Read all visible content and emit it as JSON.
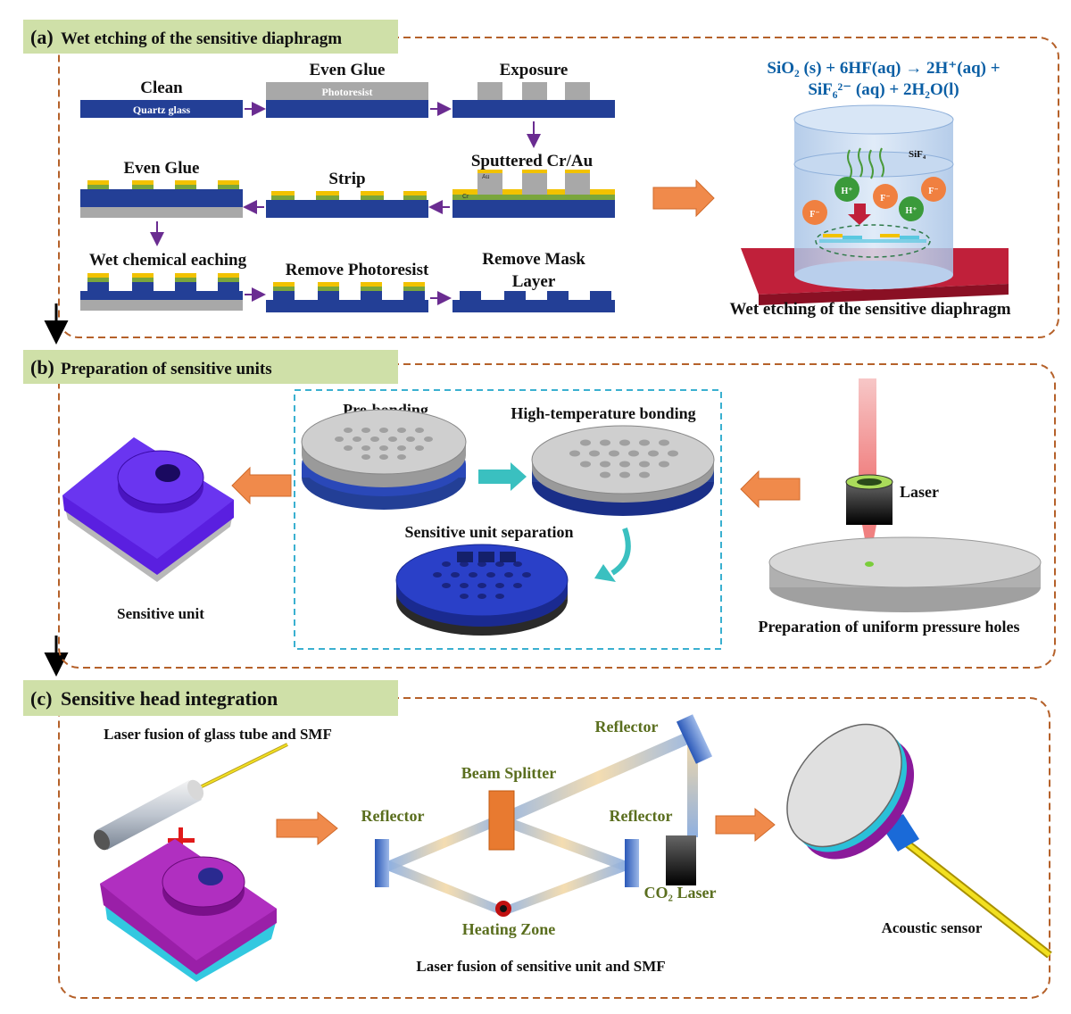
{
  "colors": {
    "header_bg": "#cfe0a8",
    "dash_border": "#b5612a",
    "quartz_blue": "#233f96",
    "photoresist_gray": "#a8a8a8",
    "gold": "#f2c200",
    "green_layer": "#7aa63c",
    "arrow_purple": "#6a2c91",
    "arrow_orange": "#f08a4b",
    "unit_purple": "#5a1fe0",
    "unit_magenta": "#9a1fa8",
    "cyan_layer": "#33c8e0",
    "laser_red": "#f0a0a0",
    "formula_blue": "#0b5fa5"
  },
  "section_a": {
    "label": "(a)",
    "title": "Wet etching of the sensitive diaphragm",
    "steps": {
      "clean": "Clean",
      "even_glue_1": "Even Glue",
      "exposure": "Exposure",
      "sputtered": "Sputtered Cr/Au",
      "strip": "Strip",
      "even_glue_2": "Even Glue",
      "wet_chemical": "Wet chemical eaching",
      "remove_photoresist": "Remove Photoresist",
      "remove_mask_line1": "Remove Mask",
      "remove_mask_line2": "Layer"
    },
    "layer_labels": {
      "quartz": "Quartz glass",
      "photoresist": "Photoresist",
      "au": "Au",
      "cr": "Cr"
    },
    "formula_line1": "SiO₂ (s) + 6HF(aq) → 2H⁺(aq) +",
    "formula_line2": "SiF₆²⁻ (aq) + 2H₂O(l)",
    "beaker_labels": {
      "sif4": "SiF₄",
      "h_plus": "H⁺",
      "f_minus": "F⁻"
    },
    "caption": "Wet etching of the sensitive diaphragm"
  },
  "section_b": {
    "label": "(b)",
    "title": "Preparation of sensitive units",
    "pre_bonding": "Pre-bonding",
    "high_temp_bonding": "High-temperature bonding",
    "unit_separation": "Sensitive unit separation",
    "laser": "Laser",
    "uniform_holes": "Preparation of uniform pressure holes",
    "sensitive_unit": "Sensitive unit"
  },
  "section_c": {
    "label": "(c)",
    "title": "Sensitive head integration",
    "laser_fusion_tube": "Laser fusion of glass tube and SMF",
    "reflector_top": "Reflector",
    "beam_splitter": "Beam Splitter",
    "reflector_left": "Reflector",
    "reflector_right": "Reflector",
    "co2_laser": "CO₂ Laser",
    "heating_zone": "Heating Zone",
    "laser_fusion_unit": "Laser fusion of sensitive unit and SMF",
    "acoustic_sensor": "Acoustic sensor"
  }
}
